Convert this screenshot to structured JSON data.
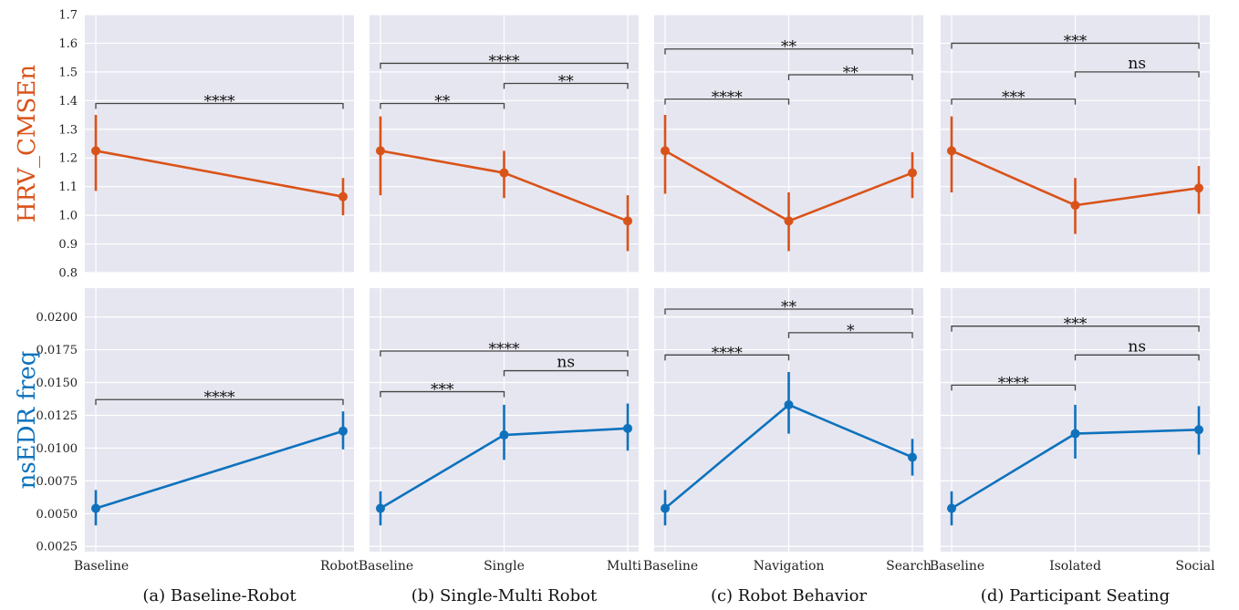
{
  "figure": {
    "captions": [
      "(a)  Baseline-Robot",
      "(b)  Single-Multi Robot",
      "(c)  Robot Behavior",
      "(d)  Participant Seating"
    ],
    "colors": {
      "top_series": "#d95319",
      "bottom_series": "#0e72bd",
      "panel_bg": "#e6e6f0",
      "grid": "#ffffff"
    }
  },
  "chart_data": [
    {
      "type": "line",
      "panel": "a",
      "row": "top",
      "ylabel": "HRV_CMSEn",
      "ylim": [
        0.8,
        1.7
      ],
      "yticks": [
        0.8,
        0.9,
        1.0,
        1.1,
        1.2,
        1.3,
        1.4,
        1.5,
        1.6,
        1.7
      ],
      "ytick_labels": [
        "0.8",
        "0.9",
        "1.0",
        "1.1",
        "1.2",
        "1.3",
        "1.4",
        "1.5",
        "1.6",
        "1.7"
      ],
      "categories": [
        "Baseline",
        "Robot"
      ],
      "series": [
        {
          "values": [
            1.225,
            1.065
          ],
          "ci_low": [
            1.085,
            1.0
          ],
          "ci_high": [
            1.35,
            1.13
          ]
        }
      ],
      "significance": [
        {
          "from": 0,
          "to": 1,
          "label": "****",
          "y": 1.39
        }
      ]
    },
    {
      "type": "line",
      "panel": "b",
      "row": "top",
      "ylim": [
        0.8,
        1.7
      ],
      "categories": [
        "Baseline",
        "Single",
        "Multi"
      ],
      "series": [
        {
          "values": [
            1.225,
            1.148,
            0.98
          ],
          "ci_low": [
            1.07,
            1.06,
            0.875
          ],
          "ci_high": [
            1.345,
            1.225,
            1.07
          ]
        }
      ],
      "significance": [
        {
          "from": 0,
          "to": 1,
          "label": "**",
          "y": 1.39
        },
        {
          "from": 1,
          "to": 2,
          "label": "**",
          "y": 1.46
        },
        {
          "from": 0,
          "to": 2,
          "label": "****",
          "y": 1.53
        }
      ]
    },
    {
      "type": "line",
      "panel": "c",
      "row": "top",
      "ylim": [
        0.8,
        1.7
      ],
      "categories": [
        "Baseline",
        "Navigation",
        "Search"
      ],
      "series": [
        {
          "values": [
            1.225,
            0.98,
            1.148
          ],
          "ci_low": [
            1.075,
            0.875,
            1.06
          ],
          "ci_high": [
            1.35,
            1.08,
            1.22
          ]
        }
      ],
      "significance": [
        {
          "from": 0,
          "to": 1,
          "label": "****",
          "y": 1.405
        },
        {
          "from": 1,
          "to": 2,
          "label": "**",
          "y": 1.49
        },
        {
          "from": 0,
          "to": 2,
          "label": "**",
          "y": 1.58
        }
      ]
    },
    {
      "type": "line",
      "panel": "d",
      "row": "top",
      "ylim": [
        0.8,
        1.7
      ],
      "categories": [
        "Baseline",
        "Isolated",
        "Social"
      ],
      "series": [
        {
          "values": [
            1.225,
            1.035,
            1.095
          ],
          "ci_low": [
            1.08,
            0.935,
            1.005
          ],
          "ci_high": [
            1.345,
            1.13,
            1.172
          ]
        }
      ],
      "significance": [
        {
          "from": 0,
          "to": 1,
          "label": "***",
          "y": 1.405
        },
        {
          "from": 1,
          "to": 2,
          "label": "ns",
          "y": 1.5
        },
        {
          "from": 0,
          "to": 2,
          "label": "***",
          "y": 1.6
        }
      ]
    },
    {
      "type": "line",
      "panel": "a",
      "row": "bottom",
      "ylabel": "nsEDR freq",
      "ylim": [
        0.0021,
        0.0222
      ],
      "yticks": [
        0.0025,
        0.005,
        0.0075,
        0.01,
        0.0125,
        0.015,
        0.0175,
        0.02
      ],
      "ytick_labels": [
        "0.0025",
        "0.0050",
        "0.0075",
        "0.0100",
        "0.0125",
        "0.0150",
        "0.0175",
        "0.0200"
      ],
      "categories": [
        "Baseline",
        "Robot"
      ],
      "series": [
        {
          "values": [
            0.0054,
            0.0113
          ],
          "ci_low": [
            0.0041,
            0.0099
          ],
          "ci_high": [
            0.0068,
            0.0128
          ]
        }
      ],
      "significance": [
        {
          "from": 0,
          "to": 1,
          "label": "****",
          "y": 0.0137
        }
      ]
    },
    {
      "type": "line",
      "panel": "b",
      "row": "bottom",
      "ylim": [
        0.0021,
        0.0222
      ],
      "categories": [
        "Baseline",
        "Single",
        "Multi"
      ],
      "series": [
        {
          "values": [
            0.0054,
            0.011,
            0.0115
          ],
          "ci_low": [
            0.0041,
            0.0091,
            0.0098
          ],
          "ci_high": [
            0.0067,
            0.0133,
            0.0134
          ]
        }
      ],
      "significance": [
        {
          "from": 0,
          "to": 1,
          "label": "***",
          "y": 0.0143
        },
        {
          "from": 1,
          "to": 2,
          "label": "ns",
          "y": 0.0159
        },
        {
          "from": 0,
          "to": 2,
          "label": "****",
          "y": 0.0174
        }
      ]
    },
    {
      "type": "line",
      "panel": "c",
      "row": "bottom",
      "ylim": [
        0.0021,
        0.0222
      ],
      "categories": [
        "Baseline",
        "Navigation",
        "Search"
      ],
      "series": [
        {
          "values": [
            0.0054,
            0.0133,
            0.0093
          ],
          "ci_low": [
            0.0041,
            0.0111,
            0.0079
          ],
          "ci_high": [
            0.0068,
            0.0158,
            0.0107
          ]
        }
      ],
      "significance": [
        {
          "from": 0,
          "to": 1,
          "label": "****",
          "y": 0.0171
        },
        {
          "from": 1,
          "to": 2,
          "label": "*",
          "y": 0.0188
        },
        {
          "from": 0,
          "to": 2,
          "label": "**",
          "y": 0.0206
        }
      ]
    },
    {
      "type": "line",
      "panel": "d",
      "row": "bottom",
      "ylim": [
        0.0021,
        0.0222
      ],
      "categories": [
        "Baseline",
        "Isolated",
        "Social"
      ],
      "series": [
        {
          "values": [
            0.0054,
            0.0111,
            0.0114
          ],
          "ci_low": [
            0.0041,
            0.0092,
            0.0095
          ],
          "ci_high": [
            0.0067,
            0.0133,
            0.0132
          ]
        }
      ],
      "significance": [
        {
          "from": 0,
          "to": 1,
          "label": "****",
          "y": 0.0148
        },
        {
          "from": 1,
          "to": 2,
          "label": "ns",
          "y": 0.0171
        },
        {
          "from": 0,
          "to": 2,
          "label": "***",
          "y": 0.0193
        }
      ]
    }
  ]
}
